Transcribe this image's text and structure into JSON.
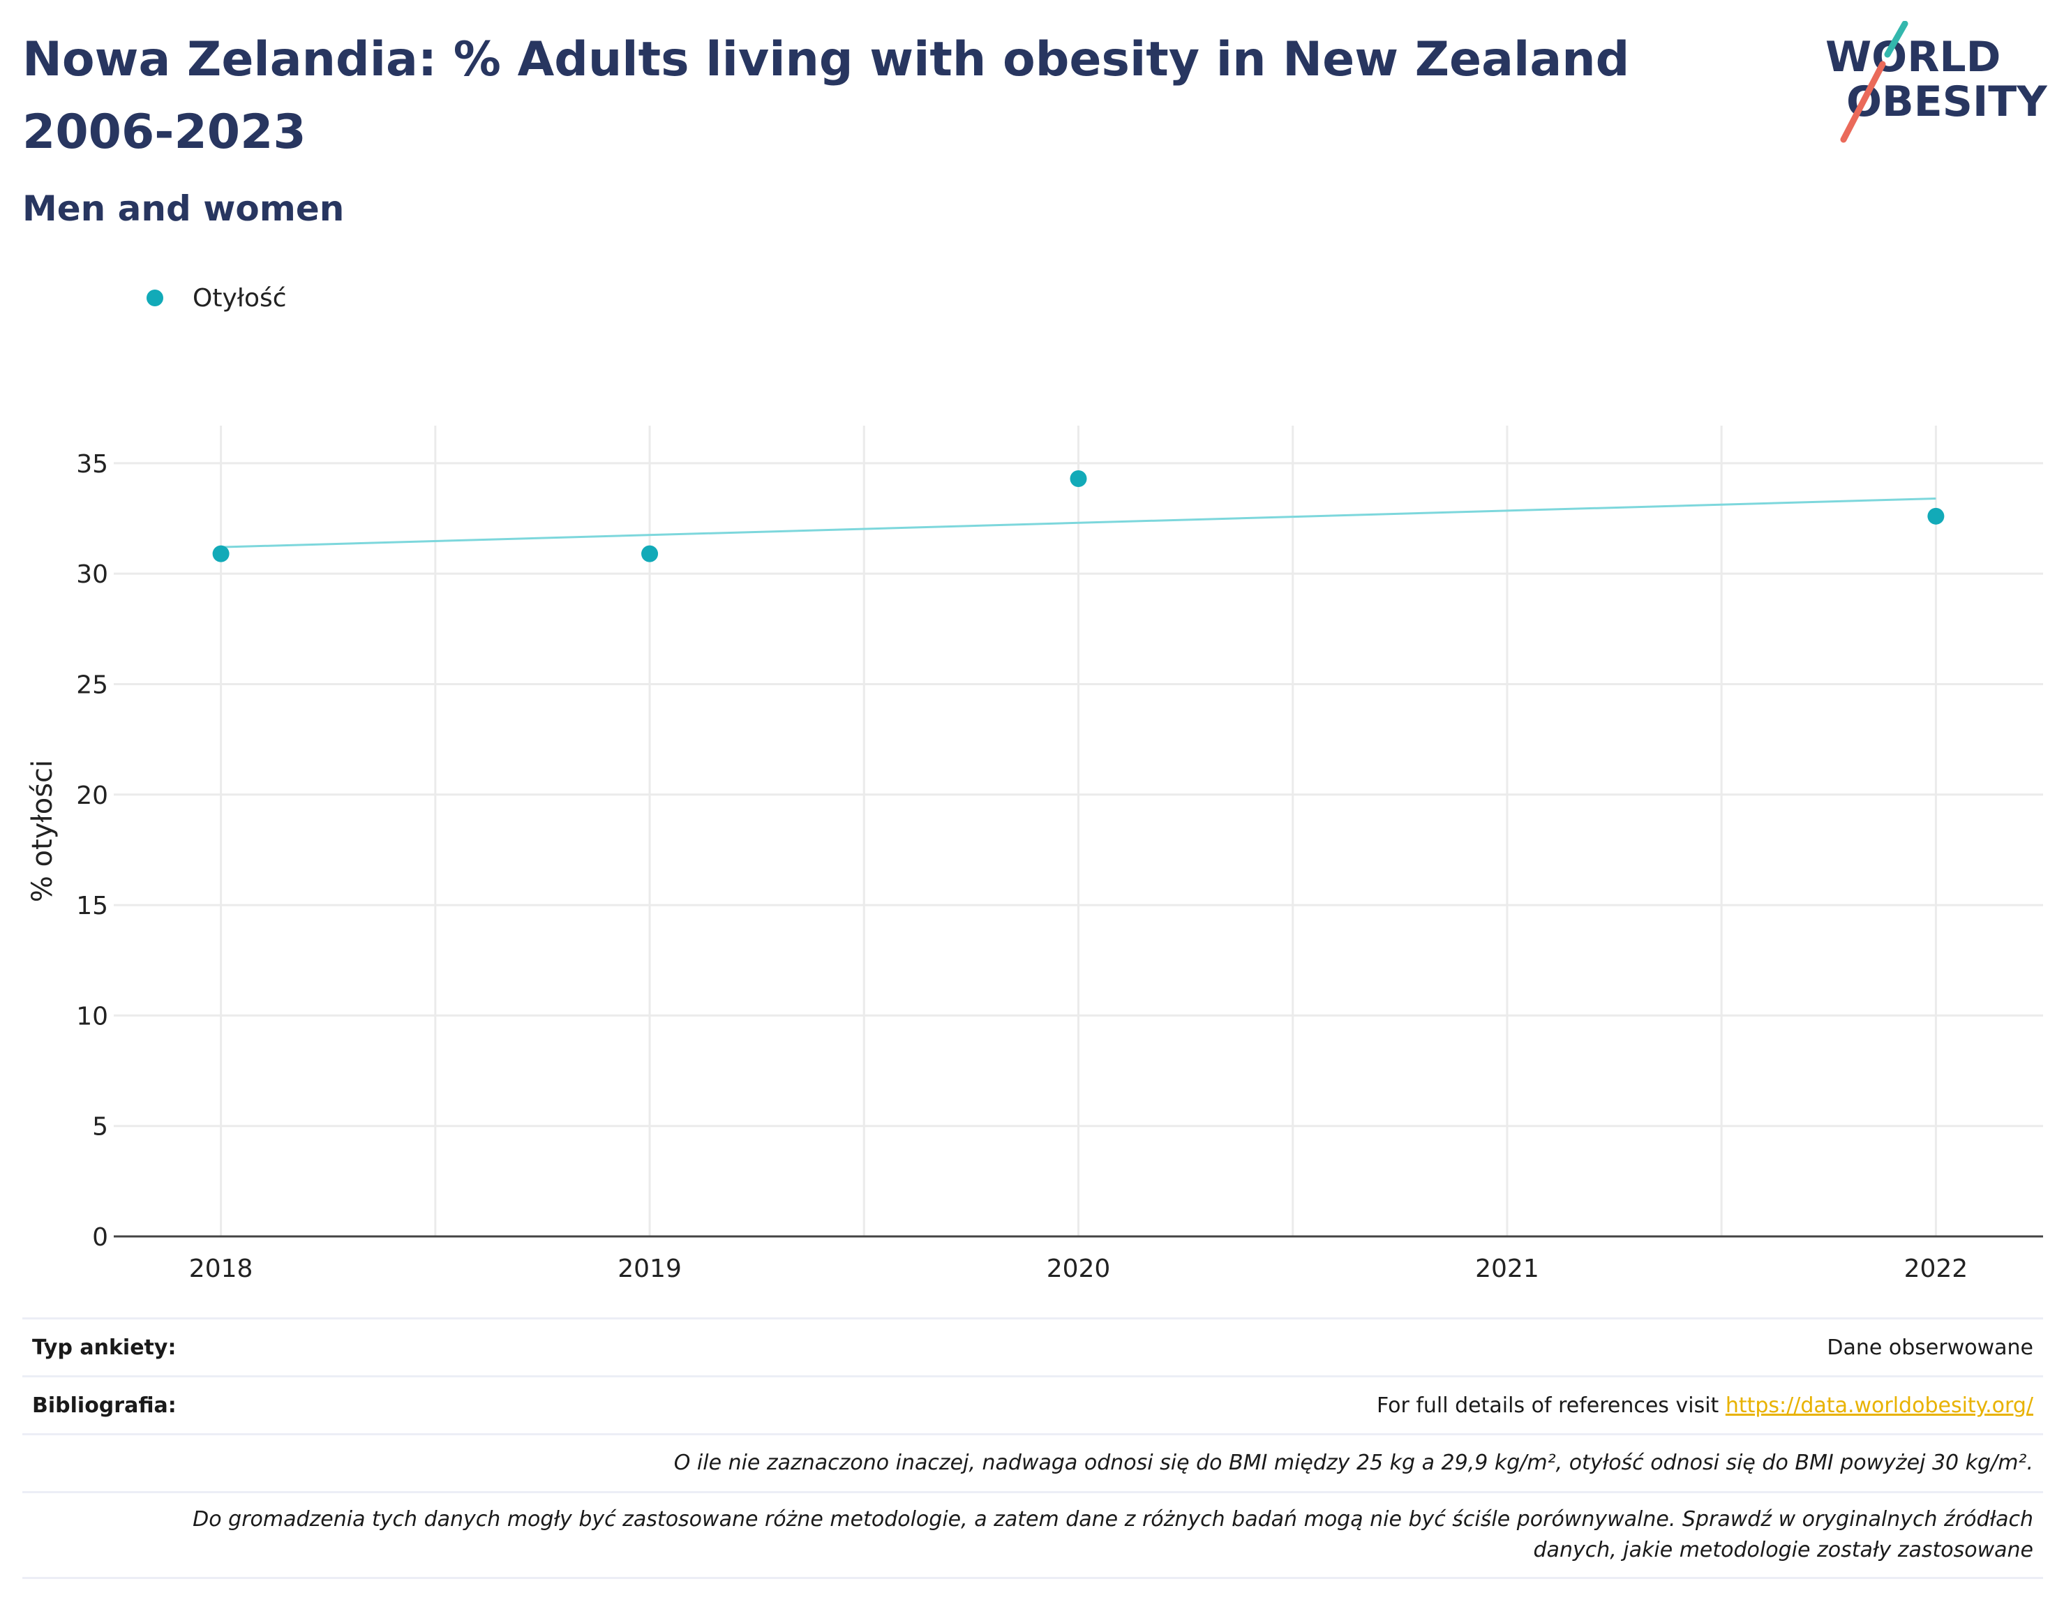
{
  "header": {
    "title": "Nowa Zelandia: % Adults living with obesity in New Zealand 2006-2023",
    "subtitle": "Men and women"
  },
  "logo": {
    "line1": "WORLD",
    "line2": "OBESITY"
  },
  "legend": {
    "label": "Otyłość",
    "color": "#12aab8"
  },
  "chart_data": {
    "type": "scatter",
    "title": "Nowa Zelandia: % Adults living with obesity in New Zealand 2006-2023",
    "subtitle": "Men and women",
    "xlabel": "",
    "ylabel": "% otyłości",
    "x_ticks": [
      "2018",
      "2019",
      "2020",
      "2021",
      "2022"
    ],
    "y_ticks": [
      0,
      5,
      10,
      15,
      20,
      25,
      30,
      35
    ],
    "xlim": [
      2017.75,
      2022.25
    ],
    "ylim": [
      0,
      36.7
    ],
    "grid": true,
    "legend_position": "top-left",
    "series": [
      {
        "name": "Otyłość",
        "color": "#12aab8",
        "x": [
          2018,
          2019,
          2020,
          2022
        ],
        "y": [
          30.9,
          30.9,
          34.3,
          32.6
        ]
      }
    ],
    "trendline": {
      "color": "#7dd7dc",
      "x": [
        2018,
        2022
      ],
      "y": [
        31.2,
        33.4
      ]
    }
  },
  "footer": {
    "survey_label": "Typ ankiety:",
    "survey_value": "Dane obserwowane",
    "bib_label": "Bibliografia:",
    "bib_text": "For full details of references visit ",
    "bib_link": "https://data.worldobesity.org/",
    "note1": "O ile nie zaznaczono inaczej, nadwaga odnosi się do BMI między 25 kg a 29,9 kg/m², otyłość odnosi się do BMI powyżej 30 kg/m².",
    "note2_line1": "Do gromadzenia tych danych mogły być zastosowane różne metodologie, a zatem dane z różnych badań mogą nie być ściśle porównywalne. Sprawdź w oryginalnych źródłach",
    "note2_line2": "danych, jakie metodologie zostały zastosowane"
  }
}
